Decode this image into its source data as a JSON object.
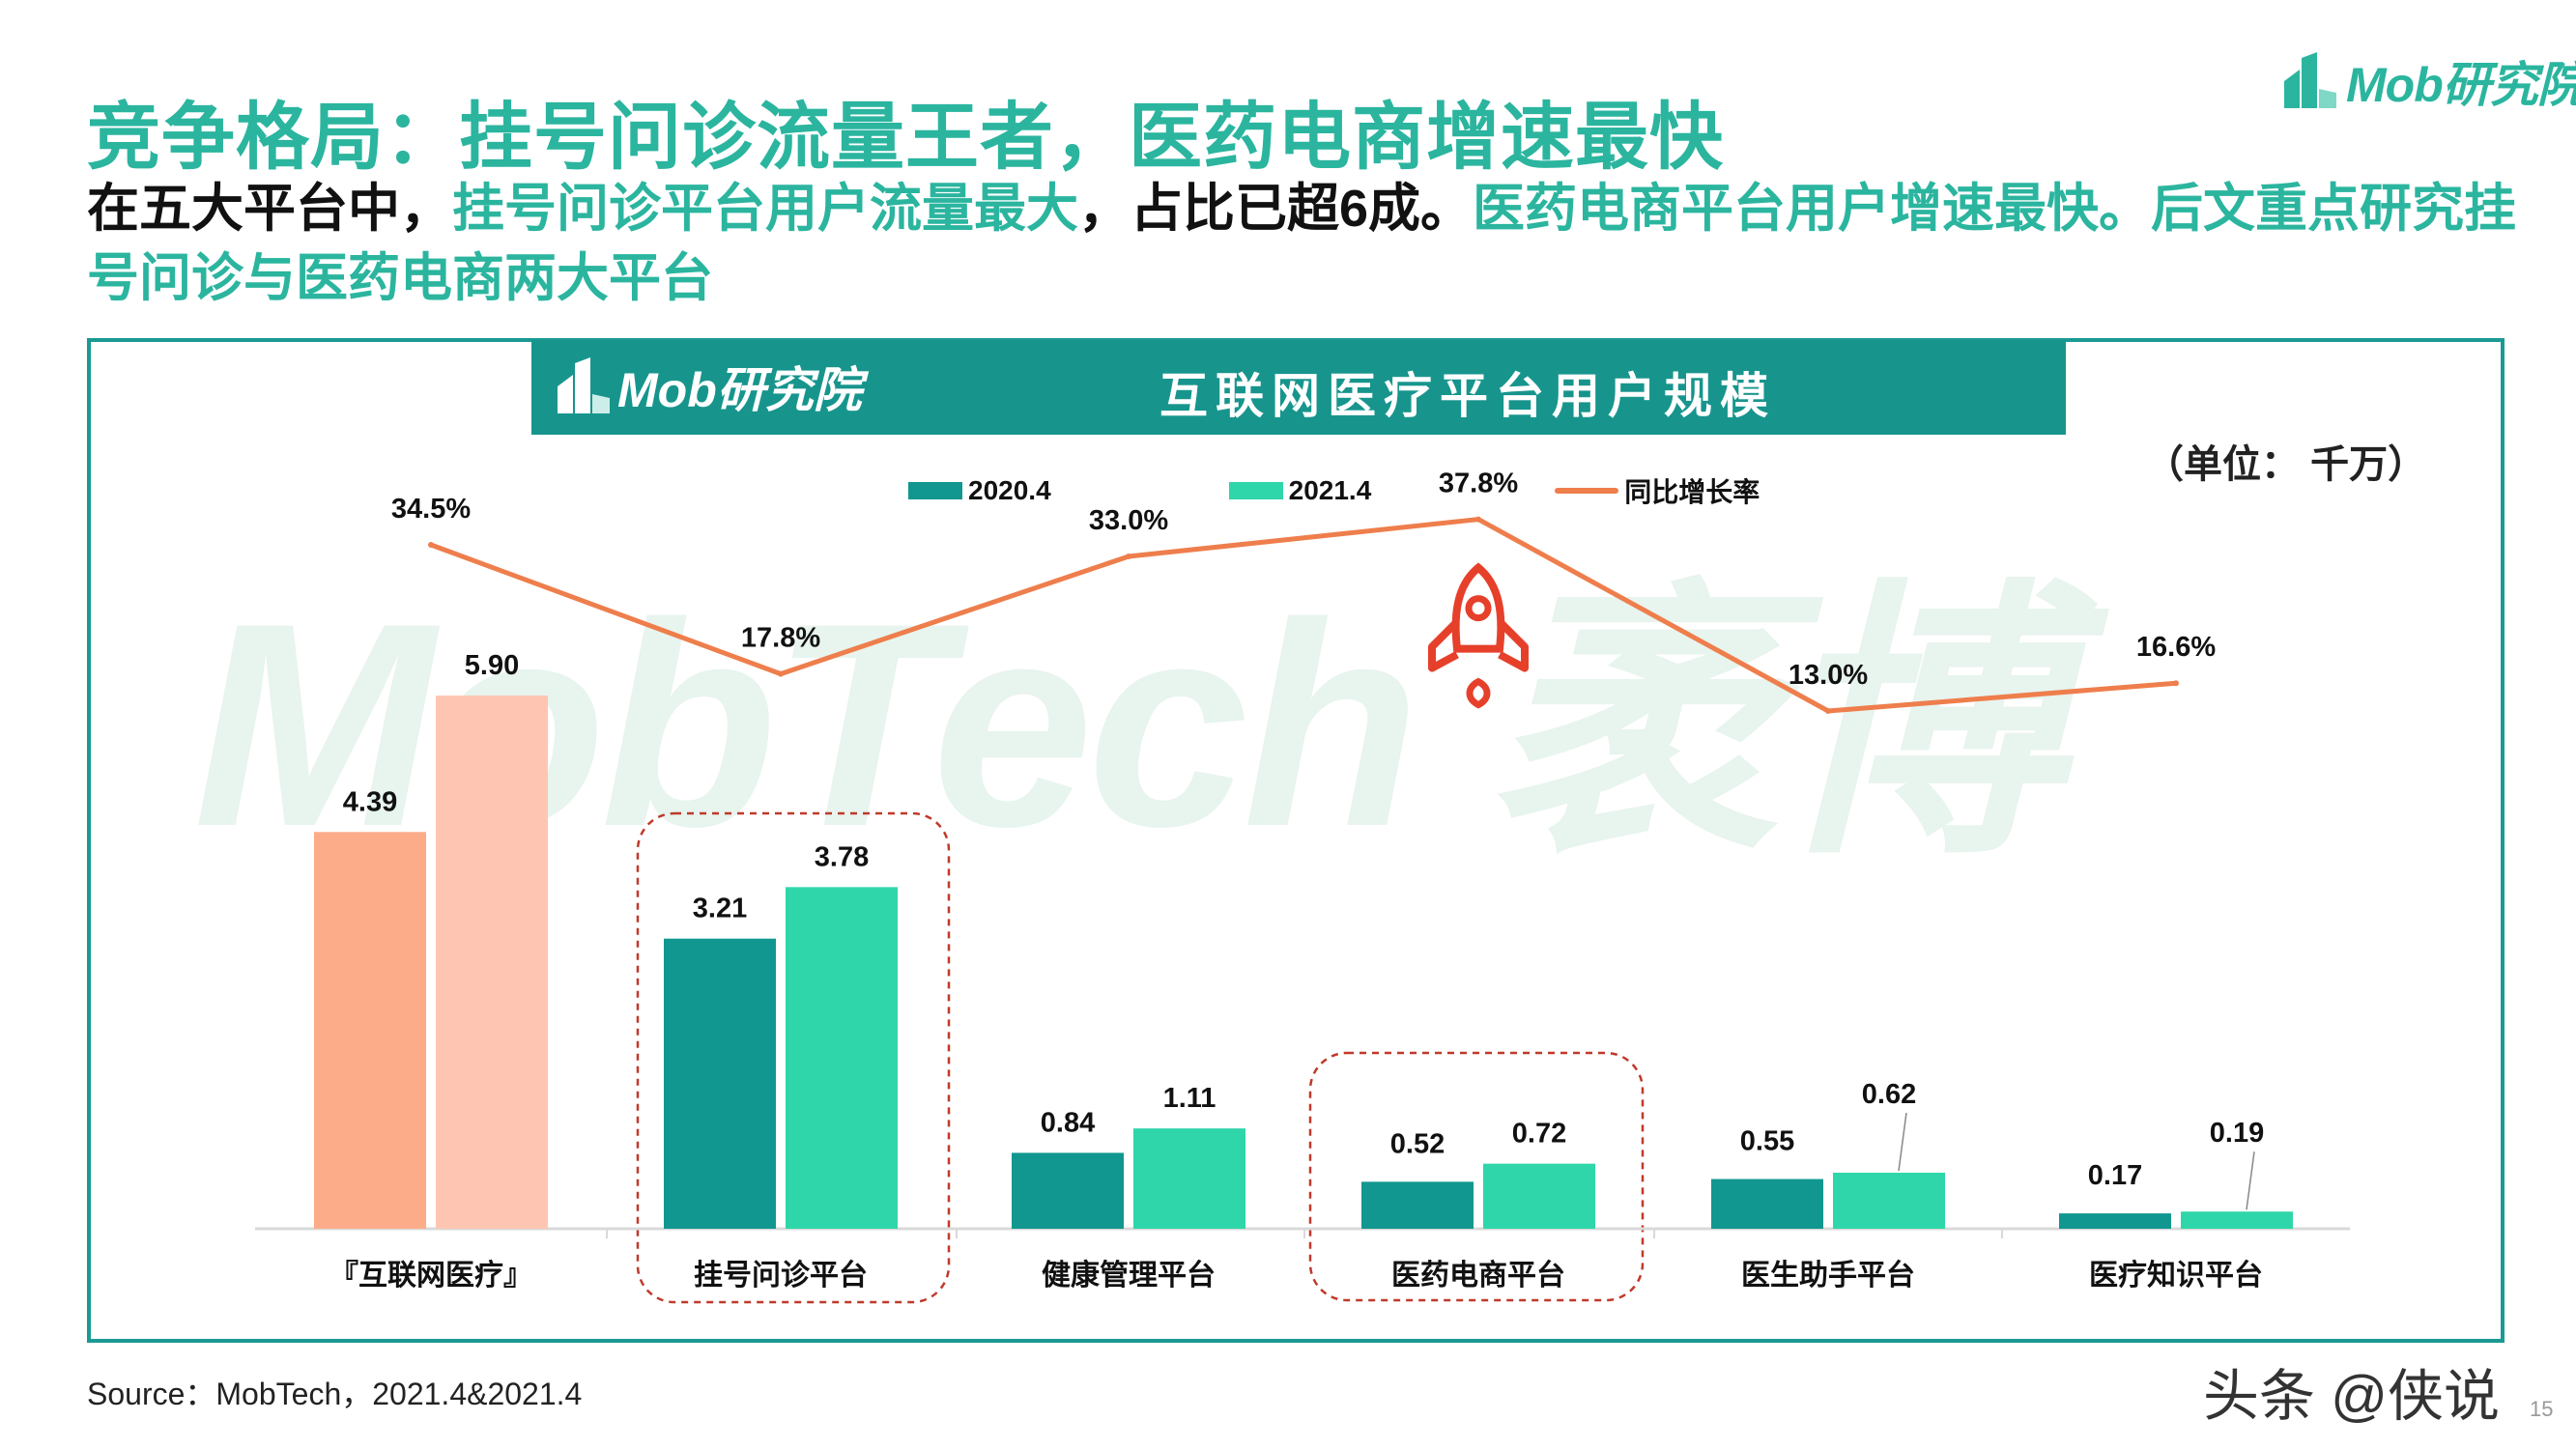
{
  "title": "竞争格局：挂号问诊流量王者，医药电商增速最快",
  "subtitle": {
    "part1": "在五大平台中，",
    "part2": "挂号问诊平台用户流量最大",
    "part3": "，占比已超6成。",
    "part4": "医药电商平台用户增速最快。后文重点研究挂号问诊与医药电商两大平台"
  },
  "brand": {
    "logo_text": "Mob研究院"
  },
  "chart_header": {
    "logo_text": "Mob研究院",
    "title": "互联网医疗平台用户规模"
  },
  "unit": "（单位： 千万）",
  "watermark": "MobTech 袤博",
  "source": "Source：MobTech，2021.4&2021.4",
  "footer_credit": "头条 @侠说",
  "page_number": "15",
  "colors": {
    "accent": "#2bb59f",
    "header_bg": "#17958d",
    "series_2020": "#11978f",
    "series_2021": "#2fd6a9",
    "total_2020": "#fdac8a",
    "total_2021": "#fec6b2",
    "rate_line": "#ee7e4c",
    "highlight_box": "#c0392b"
  },
  "chart_data": {
    "type": "bar",
    "title": "互联网医疗平台用户规模",
    "ylabel": "千万",
    "ylim": [
      0,
      6.5
    ],
    "categories": [
      "『互联网医疗』",
      "挂号问诊平台",
      "健康管理平台",
      "医药电商平台",
      "医生助手平台",
      "医疗知识平台"
    ],
    "series": [
      {
        "name": "2020.4",
        "values": [
          4.39,
          3.21,
          0.84,
          0.52,
          0.55,
          0.17
        ]
      },
      {
        "name": "2021.4",
        "values": [
          5.9,
          3.78,
          1.11,
          0.72,
          0.62,
          0.19
        ]
      }
    ],
    "value_labels": {
      "2020.4": [
        "4.39",
        "3.21",
        "0.84",
        "0.52",
        "0.55",
        "0.17"
      ],
      "2021.4": [
        "5.90",
        "3.78",
        "1.11",
        "0.72",
        "0.62",
        "0.19"
      ]
    },
    "line_series": {
      "name": "同比增长率",
      "values": [
        34.5,
        17.8,
        33.0,
        37.8,
        13.0,
        16.6
      ],
      "labels": [
        "34.5%",
        "17.8%",
        "33.0%",
        "37.8%",
        "13.0%",
        "16.6%"
      ]
    },
    "highlighted_categories": [
      "挂号问诊平台",
      "医药电商平台"
    ],
    "legend": [
      "2020.4",
      "2021.4",
      "同比增长率"
    ]
  }
}
